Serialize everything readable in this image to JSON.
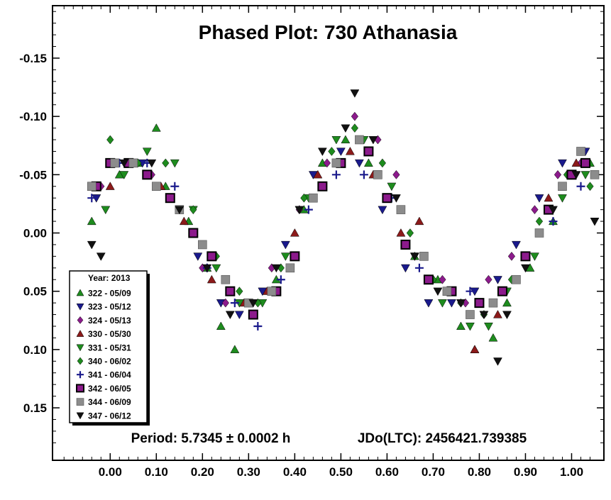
{
  "chart_data": {
    "type": "scatter",
    "title": "Phased Plot: 730 Athanasia",
    "footer_period": "Period: 5.7345 ± 0.0002 h",
    "footer_epoch": "JDo(LTC): 2456421.739385",
    "xlabel": "",
    "ylabel": "",
    "xlim": [
      -0.125,
      1.07
    ],
    "ylim": [
      0.195,
      -0.195
    ],
    "y_inverted": true,
    "x_ticks": [
      "0.00",
      "0.10",
      "0.20",
      "0.30",
      "0.40",
      "0.50",
      "0.60",
      "0.70",
      "0.80",
      "0.90",
      "1.00"
    ],
    "x_tick_values": [
      0,
      0.1,
      0.2,
      0.3,
      0.4,
      0.5,
      0.6,
      0.7,
      0.8,
      0.9,
      1.0
    ],
    "y_ticks": [
      "-0.15",
      "-0.10",
      "-0.05",
      "0.00",
      "0.05",
      "0.10",
      "0.15"
    ],
    "y_tick_values": [
      -0.15,
      -0.1,
      -0.05,
      0.0,
      0.05,
      0.1,
      0.15
    ],
    "grid": false,
    "legend": {
      "title": "Year: 2013",
      "placement": "bottom-left",
      "entries": [
        {
          "label": "322 - 05/09",
          "marker": "triangle-up",
          "color": "#1e8c1e"
        },
        {
          "label": "323 - 05/12",
          "marker": "triangle-down",
          "color": "#1a1a8c"
        },
        {
          "label": "324 - 05/13",
          "marker": "diamond",
          "color": "#8c1a8c"
        },
        {
          "label": "330 - 05/30",
          "marker": "triangle-up",
          "color": "#8c1a1a"
        },
        {
          "label": "331 - 05/31",
          "marker": "triangle-down",
          "color": "#1e8c1e"
        },
        {
          "label": "340 - 06/02",
          "marker": "diamond",
          "color": "#1e8c1e"
        },
        {
          "label": "341 - 06/04",
          "marker": "plus",
          "color": "#1a1a8c"
        },
        {
          "label": "342 - 06/05",
          "marker": "square-outlined",
          "color": "#8c1a8c"
        },
        {
          "label": "344 - 06/09",
          "marker": "square",
          "color": "#8c8c8c"
        },
        {
          "label": "347 - 06/12",
          "marker": "triangle-down",
          "color": "#111111"
        }
      ]
    },
    "series": [
      {
        "name": "322 - 05/09",
        "x": [
          -0.04,
          0.02,
          0.06,
          0.1,
          0.12,
          0.17,
          0.21,
          0.24,
          0.27,
          0.31,
          0.36,
          0.42,
          0.46,
          0.51,
          0.56,
          0.6,
          0.66,
          0.71,
          0.76,
          0.79,
          0.83,
          0.86,
          0.91,
          0.96,
          1.0,
          1.04
        ],
        "y": [
          -0.01,
          -0.05,
          -0.06,
          -0.09,
          -0.04,
          -0.01,
          0.03,
          0.08,
          0.1,
          0.07,
          0.04,
          -0.02,
          -0.06,
          -0.08,
          -0.06,
          -0.03,
          0.02,
          0.04,
          0.08,
          0.1,
          0.09,
          0.06,
          0.03,
          -0.01,
          -0.05,
          -0.06
        ]
      },
      {
        "name": "323 - 05/12",
        "x": [
          -0.03,
          0.01,
          0.07,
          0.13,
          0.19,
          0.24,
          0.28,
          0.33,
          0.38,
          0.44,
          0.5,
          0.54,
          0.59,
          0.64,
          0.69,
          0.74,
          0.79,
          0.84,
          0.88,
          0.93,
          0.98,
          1.03
        ],
        "y": [
          -0.03,
          -0.06,
          -0.06,
          -0.03,
          0.02,
          0.06,
          0.07,
          0.05,
          0.01,
          -0.05,
          -0.07,
          -0.06,
          -0.02,
          0.03,
          0.06,
          0.06,
          0.05,
          0.04,
          0.01,
          -0.03,
          -0.06,
          -0.07
        ]
      },
      {
        "name": "324 - 05/13",
        "x": [
          -0.02,
          0.04,
          0.09,
          0.15,
          0.2,
          0.25,
          0.3,
          0.35,
          0.41,
          0.47,
          0.53,
          0.58,
          0.62,
          0.68,
          0.72,
          0.77,
          0.82,
          0.87,
          0.92,
          0.97,
          1.02
        ],
        "y": [
          -0.04,
          -0.06,
          -0.05,
          -0.02,
          0.03,
          0.06,
          0.06,
          0.03,
          -0.02,
          -0.06,
          -0.1,
          -0.08,
          -0.05,
          0.02,
          0.04,
          0.06,
          0.04,
          0.02,
          -0.02,
          -0.05,
          -0.06
        ]
      },
      {
        "name": "330 - 05/30",
        "x": [
          0.0,
          0.05,
          0.11,
          0.16,
          0.22,
          0.29,
          0.34,
          0.4,
          0.45,
          0.52,
          0.57,
          0.63,
          0.67,
          0.73,
          0.79,
          0.84,
          0.9,
          0.95,
          1.01
        ],
        "y": [
          -0.04,
          -0.06,
          -0.04,
          -0.01,
          0.04,
          0.06,
          0.05,
          0.0,
          -0.05,
          -0.07,
          -0.05,
          0.0,
          -0.01,
          0.05,
          0.1,
          0.07,
          0.02,
          -0.03,
          -0.06
        ]
      },
      {
        "name": "331 - 05/31",
        "x": [
          -0.01,
          0.03,
          0.08,
          0.14,
          0.18,
          0.23,
          0.28,
          0.33,
          0.38,
          0.43,
          0.49,
          0.55,
          0.61,
          0.66,
          0.72,
          0.78,
          0.82,
          0.86,
          0.92,
          0.98,
          1.03
        ],
        "y": [
          -0.02,
          -0.05,
          -0.07,
          -0.06,
          -0.02,
          0.03,
          0.06,
          0.06,
          0.02,
          -0.03,
          -0.08,
          -0.08,
          -0.04,
          0.02,
          0.06,
          0.08,
          0.08,
          0.05,
          0.02,
          -0.03,
          -0.05
        ]
      },
      {
        "name": "340 - 06/02",
        "x": [
          0.0,
          0.06,
          0.12,
          0.18,
          0.23,
          0.28,
          0.32,
          0.37,
          0.42,
          0.48,
          0.53,
          0.59,
          0.65,
          0.7,
          0.76,
          0.81,
          0.87,
          0.93,
          0.99,
          1.04
        ],
        "y": [
          -0.08,
          -0.06,
          -0.06,
          -0.02,
          0.02,
          0.05,
          0.06,
          0.03,
          -0.03,
          -0.07,
          -0.09,
          -0.06,
          0.0,
          0.04,
          0.06,
          0.07,
          0.04,
          -0.01,
          -0.05,
          -0.04
        ]
      },
      {
        "name": "341 - 06/04",
        "x": [
          -0.04,
          0.02,
          0.08,
          0.14,
          0.21,
          0.27,
          0.32,
          0.37,
          0.43,
          0.49,
          0.55,
          0.61,
          0.67,
          0.73,
          0.78,
          0.85,
          0.9,
          0.96,
          1.02
        ],
        "y": [
          -0.03,
          -0.06,
          -0.06,
          -0.04,
          0.03,
          0.06,
          0.08,
          0.04,
          -0.02,
          -0.05,
          -0.05,
          -0.03,
          0.03,
          0.05,
          0.05,
          0.05,
          0.02,
          -0.01,
          -0.04
        ]
      },
      {
        "name": "342 - 06/05",
        "x": [
          -0.03,
          0.0,
          0.04,
          0.08,
          0.13,
          0.18,
          0.22,
          0.26,
          0.31,
          0.36,
          0.4,
          0.46,
          0.5,
          0.56,
          0.6,
          0.64,
          0.69,
          0.74,
          0.8,
          0.85,
          0.9,
          0.95,
          1.0,
          1.03
        ],
        "y": [
          -0.04,
          -0.06,
          -0.06,
          -0.05,
          -0.03,
          0.0,
          0.02,
          0.05,
          0.07,
          0.05,
          0.02,
          -0.04,
          -0.06,
          -0.07,
          -0.03,
          0.01,
          0.04,
          0.05,
          0.06,
          0.05,
          0.02,
          -0.02,
          -0.05,
          -0.06
        ]
      },
      {
        "name": "344 - 06/09",
        "x": [
          -0.04,
          0.01,
          0.05,
          0.1,
          0.15,
          0.2,
          0.25,
          0.3,
          0.35,
          0.39,
          0.44,
          0.49,
          0.54,
          0.58,
          0.63,
          0.68,
          0.73,
          0.78,
          0.83,
          0.88,
          0.93,
          0.98,
          1.02,
          1.05
        ],
        "y": [
          -0.04,
          -0.06,
          -0.06,
          -0.04,
          -0.02,
          0.01,
          0.04,
          0.06,
          0.05,
          0.03,
          -0.03,
          -0.06,
          -0.08,
          -0.05,
          -0.02,
          0.02,
          0.05,
          0.07,
          0.06,
          0.04,
          0.0,
          -0.04,
          -0.07,
          -0.05
        ]
      },
      {
        "name": "347 - 06/12",
        "x": [
          -0.04,
          -0.02,
          0.03,
          0.09,
          0.15,
          0.21,
          0.26,
          0.31,
          0.36,
          0.41,
          0.46,
          0.51,
          0.53,
          0.57,
          0.62,
          0.66,
          0.71,
          0.76,
          0.81,
          0.84,
          0.86,
          0.9,
          0.96,
          1.01,
          1.05
        ],
        "y": [
          0.01,
          0.02,
          -0.06,
          -0.06,
          -0.02,
          0.03,
          0.07,
          0.06,
          0.03,
          -0.02,
          -0.07,
          -0.09,
          -0.12,
          -0.08,
          -0.03,
          0.02,
          0.05,
          0.06,
          0.07,
          0.11,
          0.07,
          0.03,
          -0.02,
          -0.05,
          -0.01
        ]
      }
    ]
  }
}
